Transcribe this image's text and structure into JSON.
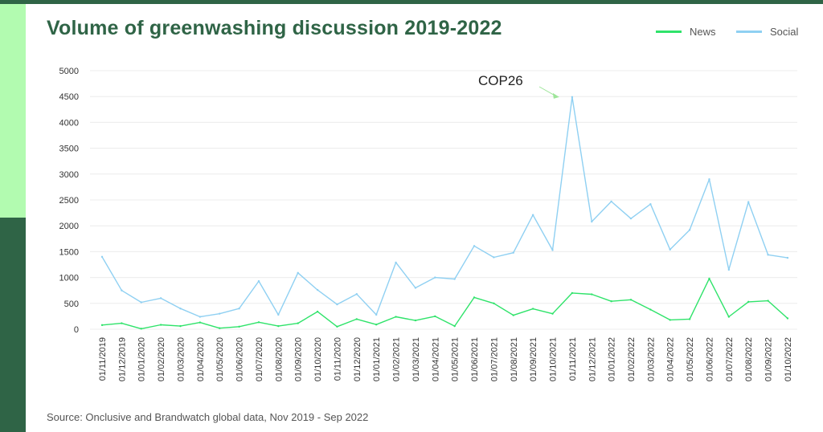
{
  "chart_data": {
    "type": "line",
    "title": "Volume of greenwashing discussion 2019-2022",
    "source": "Source: Onclusive and Brandwatch global data, Nov 2019 - Sep 2022",
    "xlabel": "",
    "ylabel": "",
    "ylim": [
      0,
      5000
    ],
    "yticks": [
      0,
      500,
      1000,
      1500,
      2000,
      2500,
      3000,
      3500,
      4000,
      4500,
      5000
    ],
    "grid": true,
    "legend_position": "top-right",
    "x": [
      "01/11/2019",
      "01/12/2019",
      "01/01/2020",
      "01/02/2020",
      "01/03/2020",
      "01/04/2020",
      "01/05/2020",
      "01/06/2020",
      "01/07/2020",
      "01/08/2020",
      "01/09/2020",
      "01/10/2020",
      "01/11/2020",
      "01/12/2020",
      "01/01/2021",
      "01/02/2021",
      "01/03/2021",
      "01/04/2021",
      "01/05/2021",
      "01/06/2021",
      "01/07/2021",
      "01/08/2021",
      "01/09/2021",
      "01/10/2021",
      "01/11/2021",
      "01/12/2021",
      "01/01/2022",
      "01/02/2022",
      "01/03/2022",
      "01/04/2022",
      "01/05/2022",
      "01/06/2022",
      "01/07/2022",
      "01/08/2022",
      "01/09/2022",
      "01/10/2022"
    ],
    "series": [
      {
        "name": "News",
        "color": "#2fe36a",
        "values": [
          80,
          115,
          10,
          85,
          60,
          130,
          20,
          50,
          135,
          60,
          115,
          340,
          50,
          195,
          90,
          240,
          170,
          250,
          60,
          615,
          500,
          270,
          395,
          300,
          700,
          675,
          540,
          570,
          380,
          180,
          195,
          980,
          240,
          530,
          550,
          210
        ]
      },
      {
        "name": "Social",
        "color": "#8fd0f2",
        "values": [
          1400,
          750,
          520,
          600,
          400,
          240,
          300,
          400,
          930,
          280,
          1090,
          760,
          480,
          680,
          280,
          1290,
          800,
          1000,
          970,
          1610,
          1390,
          1480,
          2210,
          1530,
          4490,
          2080,
          2470,
          2140,
          2420,
          1540,
          1920,
          2900,
          1150,
          2460,
          1440,
          1380
        ]
      }
    ],
    "annotations": [
      {
        "text": "COP26",
        "x": "01/11/2021"
      }
    ]
  }
}
